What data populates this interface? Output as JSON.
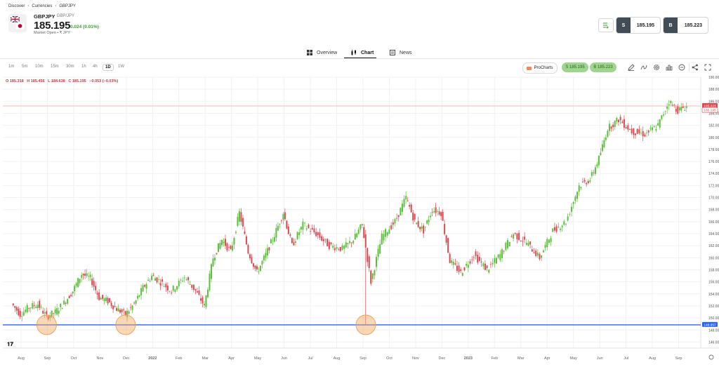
{
  "breadcrumb": {
    "items": [
      "Discover",
      "Currencies",
      "GBPJPY"
    ]
  },
  "instrument": {
    "symbol": "GBPJPY",
    "subtitle": "GBP/JPY",
    "price": "185.195",
    "change": "0.024 (0.01%)",
    "status": "Market Open  •  ₹ JPY"
  },
  "trade": {
    "sell_label": "S",
    "sell_price": "185.195",
    "buy_label": "B",
    "buy_price": "185.223"
  },
  "tabs": [
    {
      "label": "Overview",
      "icon": "grid-icon"
    },
    {
      "label": "Chart",
      "icon": "candles-icon",
      "active": true
    },
    {
      "label": "News",
      "icon": "newspaper-icon"
    }
  ],
  "toolbar": {
    "intervals": [
      "1m",
      "5m",
      "10m",
      "15m",
      "30m",
      "1h",
      "4h",
      "1D",
      "1W"
    ],
    "active_interval": "1D",
    "procharts_label": "ProCharts",
    "sell_pill": "S 185.195",
    "buy_pill": "B 185.223",
    "tools": [
      "pencil-icon",
      "indicators-icon",
      "settings-icon",
      "compare-icon",
      "minus-circle-icon",
      "share-icon",
      "fullscreen-icon"
    ]
  },
  "ohlc": {
    "open": "O 185.318",
    "high": "H 185.456",
    "low": "L 184.638",
    "close": "C 185.195",
    "change": "−0.053 (−0.03%)"
  },
  "colors": {
    "up": "#5cbf3b",
    "down": "#de4850",
    "support_line": "#2962ff",
    "price_line": "#f3b8bb",
    "highlight": "#f5a65b"
  },
  "chart_data": {
    "type": "candlestick",
    "y_axis": {
      "min": 145,
      "max": 190,
      "step": 2,
      "labels": [
        "190.000",
        "188.000",
        "186.000",
        "184.000",
        "182.000",
        "180.000",
        "178.000",
        "176.000",
        "174.000",
        "172.000",
        "170.000",
        "168.000",
        "166.000",
        "164.000",
        "162.000",
        "160.000",
        "158.000",
        "156.000",
        "154.000",
        "152.000",
        "150.000",
        "148.000",
        "146.000"
      ]
    },
    "x_labels": [
      "Aug",
      "Sep",
      "Oct",
      "Nov",
      "Dec",
      "2022",
      "Feb",
      "Mar",
      "Apr",
      "May",
      "Jun",
      "Jul",
      "Aug",
      "Sep",
      "Oct",
      "Nov",
      "Dec",
      "2023",
      "Feb",
      "Mar",
      "Apr",
      "May",
      "Jun",
      "Jul",
      "Aug",
      "Sep"
    ],
    "current_price": 185.223,
    "current_price_label": "185.223",
    "bid_price": 185.195,
    "bid_price_label": "185.195",
    "support_level": 148.857,
    "support_label": "148.857",
    "highlighted_dates": [
      "Sep 2021",
      "Dec 2021",
      "Sep 2022"
    ],
    "path": [
      {
        "x": "Aug 2021",
        "y": 152.4
      },
      {
        "x": "Aug 2021",
        "y": 150.6
      },
      {
        "x": "Aug 2021",
        "y": 151.8
      },
      {
        "x": "Sep 2021",
        "y": 152.3
      },
      {
        "x": "Sep 2021",
        "y": 150.2
      },
      {
        "x": "Sep 2021",
        "y": 151.0
      },
      {
        "x": "Oct 2021",
        "y": 152.5
      },
      {
        "x": "Oct 2021",
        "y": 154.5
      },
      {
        "x": "Oct 2021",
        "y": 157.3
      },
      {
        "x": "Nov 2021",
        "y": 156.6
      },
      {
        "x": "Nov 2021",
        "y": 153.4
      },
      {
        "x": "Nov 2021",
        "y": 152.8
      },
      {
        "x": "Dec 2021",
        "y": 151.5
      },
      {
        "x": "Dec 2021",
        "y": 150.6
      },
      {
        "x": "Dec 2021",
        "y": 152.3
      },
      {
        "x": "2022",
        "y": 155.0
      },
      {
        "x": "2022",
        "y": 157.0
      },
      {
        "x": "2022",
        "y": 156.0
      },
      {
        "x": "Feb 2022",
        "y": 154.5
      },
      {
        "x": "Feb 2022",
        "y": 156.8
      },
      {
        "x": "Mar 2022",
        "y": 154.5
      },
      {
        "x": "Mar 2022",
        "y": 152.0
      },
      {
        "x": "Mar 2022",
        "y": 160.0
      },
      {
        "x": "Apr 2022",
        "y": 163.0
      },
      {
        "x": "Apr 2022",
        "y": 161.0
      },
      {
        "x": "Apr 2022",
        "y": 167.5
      },
      {
        "x": "May 2022",
        "y": 161.0
      },
      {
        "x": "May 2022",
        "y": 157.5
      },
      {
        "x": "May 2022",
        "y": 160.5
      },
      {
        "x": "Jun 2022",
        "y": 163.8
      },
      {
        "x": "Jun 2022",
        "y": 167.5
      },
      {
        "x": "Jun 2022",
        "y": 162.0
      },
      {
        "x": "Jul 2022",
        "y": 165.5
      },
      {
        "x": "Jul 2022",
        "y": 164.0
      },
      {
        "x": "Aug 2022",
        "y": 162.0
      },
      {
        "x": "Aug 2022",
        "y": 161.5
      },
      {
        "x": "Sep 2022",
        "y": 163.0
      },
      {
        "x": "Sep 2022",
        "y": 165.5
      },
      {
        "x": "Sep 2022",
        "y": 156.0
      },
      {
        "x": "Oct 2022",
        "y": 163.5
      },
      {
        "x": "Oct 2022",
        "y": 166.0
      },
      {
        "x": "Nov 2022",
        "y": 170.0
      },
      {
        "x": "Nov 2022",
        "y": 166.0
      },
      {
        "x": "Nov 2022",
        "y": 164.5
      },
      {
        "x": "Dec 2022",
        "y": 168.0
      },
      {
        "x": "Dec 2022",
        "y": 167.5
      },
      {
        "x": "Dec 2022",
        "y": 159.5
      },
      {
        "x": "2023",
        "y": 157.5
      },
      {
        "x": "2023",
        "y": 160.5
      },
      {
        "x": "Feb 2023",
        "y": 158.0
      },
      {
        "x": "Feb 2023",
        "y": 160.5
      },
      {
        "x": "Mar 2023",
        "y": 164.0
      },
      {
        "x": "Mar 2023",
        "y": 162.5
      },
      {
        "x": "Apr 2023",
        "y": 160.0
      },
      {
        "x": "Apr 2023",
        "y": 164.5
      },
      {
        "x": "May 2023",
        "y": 166.0
      },
      {
        "x": "May 2023",
        "y": 172.0
      },
      {
        "x": "Jun 2023",
        "y": 173.0
      },
      {
        "x": "Jun 2023",
        "y": 176.5
      },
      {
        "x": "Jun 2023",
        "y": 181.5
      },
      {
        "x": "Jul 2023",
        "y": 183.0
      },
      {
        "x": "Jul 2023",
        "y": 181.0
      },
      {
        "x": "Aug 2023",
        "y": 180.5
      },
      {
        "x": "Aug 2023",
        "y": 182.0
      },
      {
        "x": "Sep 2023",
        "y": 186.0
      },
      {
        "x": "Sep 2023",
        "y": 184.5
      },
      {
        "x": "Sep 2023",
        "y": 185.2
      }
    ]
  }
}
